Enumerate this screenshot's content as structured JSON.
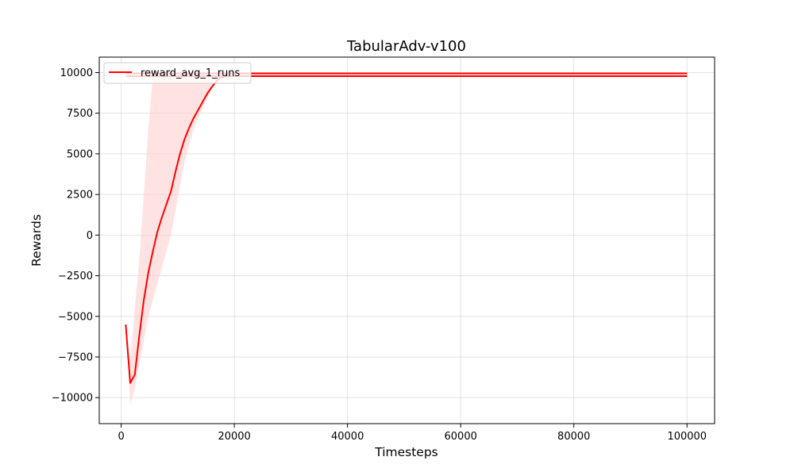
{
  "chart_data": {
    "type": "line",
    "title": "TabularAdv-v100",
    "xlabel": "Timesteps",
    "ylabel": "Rewards",
    "xlim": [
      -3875,
      104875
    ],
    "ylim": [
      -11600,
      10950
    ],
    "xticks": [
      0,
      20000,
      40000,
      60000,
      80000,
      100000
    ],
    "xtick_labels": [
      "0",
      "20000",
      "40000",
      "60000",
      "80000",
      "100000"
    ],
    "yticks": [
      -10000,
      -7500,
      -5000,
      -2500,
      0,
      2500,
      5000,
      7500,
      10000
    ],
    "ytick_labels": [
      "−10000",
      "−7500",
      "−5000",
      "−2500",
      "0",
      "2500",
      "5000",
      "7500",
      "10000"
    ],
    "grid": true,
    "legend_position": "top-left",
    "series": [
      {
        "name": "reward_avg_1_runs",
        "color": "#ff0000",
        "band_color": "#ffcccc",
        "x": [
          800,
          1600,
          2400,
          3200,
          4000,
          4800,
          5600,
          6400,
          7200,
          8000,
          8800,
          9600,
          10400,
          11200,
          12000,
          12800,
          13600,
          14400,
          15200,
          16000,
          16800,
          17600,
          18400,
          19200,
          20000,
          30000,
          40000,
          50000,
          60000,
          70000,
          80000,
          90000,
          100000
        ],
        "y": [
          -5500,
          -9100,
          -8600,
          -6200,
          -4000,
          -2300,
          -1000,
          200,
          1100,
          1900,
          2700,
          3900,
          5000,
          5900,
          6600,
          7200,
          7700,
          8200,
          8700,
          9100,
          9450,
          9700,
          9750,
          9780,
          9780,
          9780,
          9780,
          9780,
          9780,
          9780,
          9780,
          9780,
          9780
        ],
        "upper": [
          -5500,
          -7800,
          -4500,
          -1500,
          2500,
          6500,
          9800,
          9950,
          9950,
          9950,
          9950,
          9950,
          9950,
          9950,
          9950,
          9950,
          9950,
          9950,
          9950,
          9950,
          9950,
          9950,
          9950,
          9950,
          9950,
          9950,
          9950,
          9950,
          9950,
          9950,
          9950,
          9950,
          9950
        ],
        "lower": [
          -5500,
          -10400,
          -9500,
          -8000,
          -6500,
          -5000,
          -4000,
          -3000,
          -2000,
          -1000,
          0,
          1500,
          3000,
          4500,
          5500,
          6500,
          7200,
          7800,
          8400,
          9000,
          9450,
          9700,
          9750,
          9780,
          9780,
          9780,
          9780,
          9780,
          9780,
          9780,
          9780,
          9780,
          9780
        ],
        "extra_lines": [
          {
            "x": [
              800,
              100000
            ],
            "y": [
              9950,
              9950
            ]
          },
          {
            "x": [
              800,
              100000
            ],
            "y": [
              9780,
              9780
            ]
          }
        ]
      }
    ]
  }
}
